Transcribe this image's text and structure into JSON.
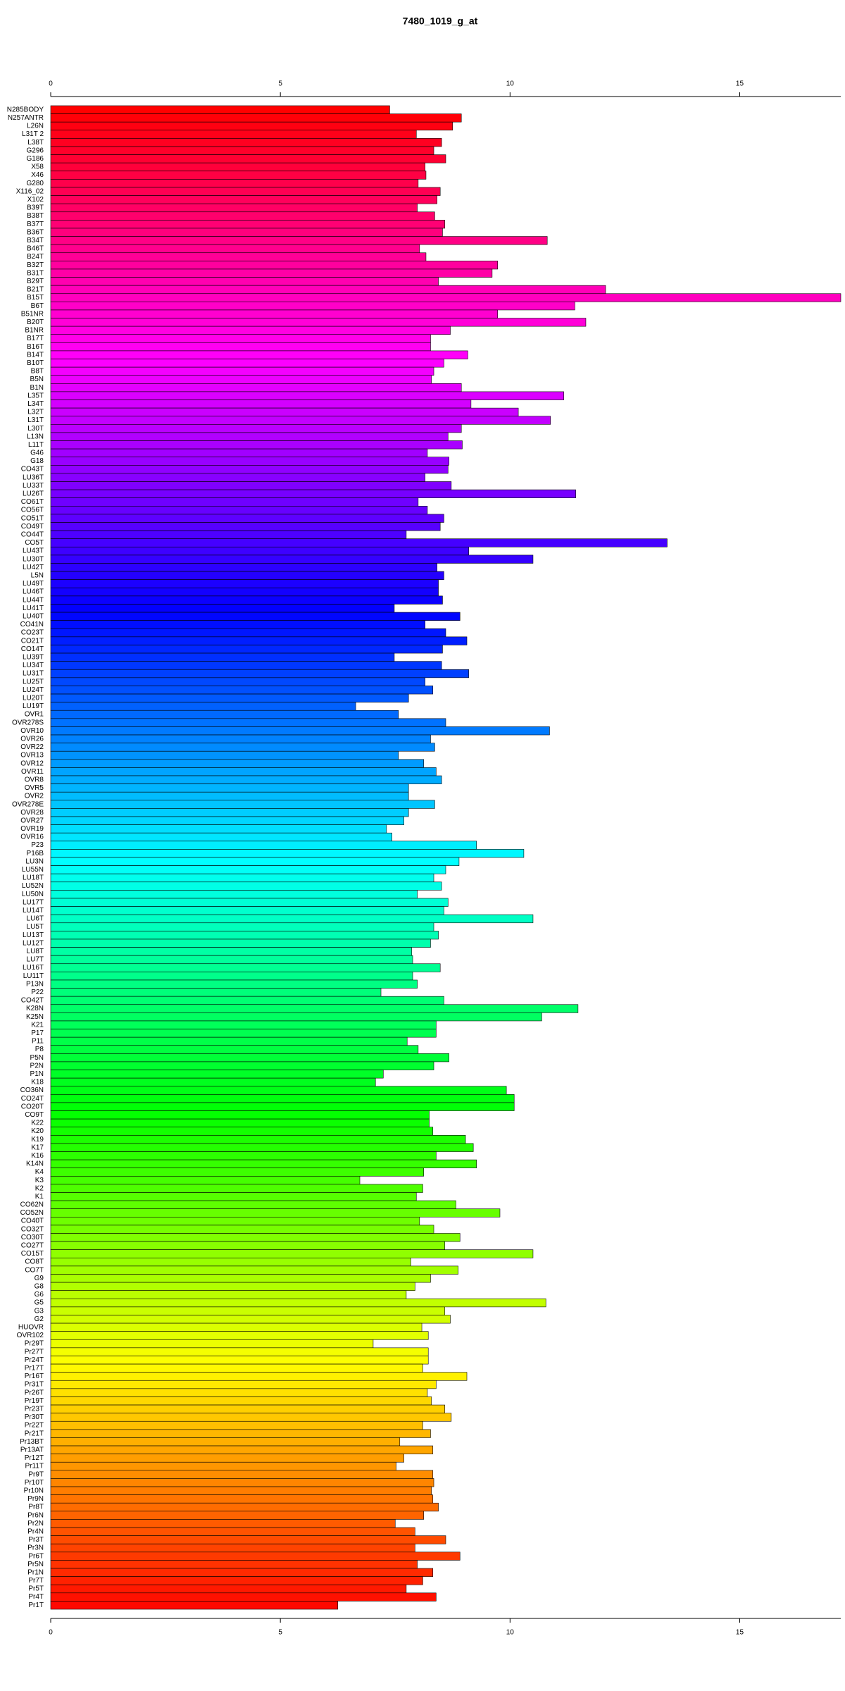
{
  "chart_data": {
    "type": "hbar",
    "title": "7480_1019_g_at",
    "categories": [
      "N285BODY",
      "N257ANTR",
      "L26N",
      "L31T 2",
      "L38T",
      "G296",
      "G186",
      "X58",
      "X46",
      "G280",
      "X116_02",
      "X102",
      "B39T",
      "B38T",
      "B37T",
      "B36T",
      "B34T",
      "B46T",
      "B24T",
      "B32T",
      "B31T",
      "B29T",
      "B21T",
      "B15T",
      "B6T",
      "B51NR",
      "B20T",
      "B1NR",
      "B17T",
      "B16T",
      "B14T",
      "B10T",
      "B8T",
      "B5N",
      "B1N",
      "L35T",
      "L34T",
      "L32T",
      "L31T",
      "L30T",
      "L13N",
      "L11T",
      "G46",
      "G18",
      "CO43T",
      "LU36T",
      "LU33T",
      "LU26T",
      "CO61T",
      "CO56T",
      "CO51T",
      "CO49T",
      "CO44T",
      "CO5T",
      "LU43T",
      "LU30T",
      "LU42T",
      "L5N",
      "LU49T",
      "LU46T",
      "LU44T",
      "LU41T",
      "LU40T",
      "CO41N",
      "CO23T",
      "CO21T",
      "CO14T",
      "LU39T",
      "LU34T",
      "LU31T",
      "LU25T",
      "LU24T",
      "LU20T",
      "LU19T",
      "OVR1",
      "OVR278S",
      "OVR10",
      "OVR26",
      "OVR22",
      "OVR13",
      "OVR12",
      "OVR11",
      "OVR8",
      "OVR5",
      "OVR2",
      "OVR278E",
      "OVR28",
      "OVR27",
      "OVR19",
      "OVR16",
      "P23",
      "P16B",
      "LU3N",
      "LU55N",
      "LU18T",
      "LU52N",
      "LU50N",
      "LU17T",
      "LU14T",
      "LU6T",
      "LU5T",
      "LU13T",
      "LU12T",
      "LU8T",
      "LU7T",
      "LU16T",
      "LU11T",
      "P13N",
      "P22",
      "CO42T",
      "K28N",
      "K25N",
      "K21",
      "P17",
      "P11",
      "P8",
      "P5N",
      "P2N",
      "P1N",
      "K18",
      "CO36N",
      "CO24T",
      "CO20T",
      "CO9T",
      "K22",
      "K20",
      "K19",
      "K17",
      "K16",
      "K14N",
      "K4",
      "K3",
      "K2",
      "K1",
      "CO62N",
      "CO52N",
      "CO40T",
      "CO32T",
      "CO30T",
      "CO27T",
      "CO15T",
      "CO8T",
      "CO7T",
      "G9",
      "G8",
      "G6",
      "G5",
      "G3",
      "G2",
      "HUOVR",
      "OVR102",
      "Pr29T",
      "Pr27T",
      "Pr24T",
      "Pr17T",
      "Pr16T",
      "Pr31T",
      "Pr26T",
      "Pr19T",
      "Pr23T",
      "Pr30T",
      "Pr22T",
      "Pr21T",
      "Pr13BT",
      "Pr13AT",
      "Pr12T",
      "Pr11T",
      "Pr9T",
      "Pr10T",
      "Pr10N",
      "Pr9N",
      "Pr8T",
      "Pr6N",
      "Pr2N",
      "Pr4N",
      "Pr3T",
      "Pr3N",
      "Pr6T",
      "Pr5N",
      "Pr1N",
      "Pr7T",
      "Pr5T",
      "Pr4T",
      "Pr1T"
    ],
    "values": [
      7.38,
      8.94,
      8.75,
      7.96,
      8.51,
      8.34,
      8.6,
      8.15,
      8.17,
      8.0,
      8.48,
      8.41,
      7.98,
      8.36,
      8.58,
      8.53,
      10.81,
      8.03,
      8.17,
      9.73,
      9.61,
      8.44,
      12.08,
      17.2,
      11.41,
      9.73,
      11.65,
      8.7,
      8.27,
      8.27,
      9.08,
      8.56,
      8.34,
      8.29,
      8.94,
      11.17,
      9.15,
      10.18,
      10.88,
      8.94,
      8.65,
      8.96,
      8.2,
      8.67,
      8.65,
      8.15,
      8.72,
      11.43,
      8.0,
      8.2,
      8.56,
      8.48,
      7.74,
      13.42,
      9.1,
      10.5,
      8.41,
      8.56,
      8.44,
      8.44,
      8.53,
      7.48,
      8.91,
      8.15,
      8.6,
      9.06,
      8.53,
      7.48,
      8.51,
      9.1,
      8.15,
      8.32,
      7.79,
      6.64,
      7.57,
      8.6,
      10.86,
      8.27,
      8.36,
      7.57,
      8.12,
      8.39,
      8.51,
      7.79,
      7.79,
      8.36,
      7.79,
      7.69,
      7.31,
      7.43,
      9.27,
      10.3,
      8.89,
      8.6,
      8.34,
      8.51,
      7.98,
      8.65,
      8.56,
      10.5,
      8.34,
      8.44,
      8.27,
      7.86,
      7.88,
      8.48,
      7.88,
      7.98,
      7.19,
      8.56,
      11.48,
      10.69,
      8.39,
      8.39,
      7.76,
      8.0,
      8.67,
      8.34,
      7.24,
      7.07,
      9.92,
      10.09,
      10.09,
      8.24,
      8.24,
      8.32,
      9.03,
      9.2,
      8.39,
      9.27,
      8.12,
      6.73,
      8.1,
      7.96,
      8.82,
      9.78,
      8.03,
      8.34,
      8.91,
      8.58,
      10.5,
      7.84,
      8.87,
      8.27,
      7.93,
      7.74,
      10.78,
      8.58,
      8.7,
      8.08,
      8.22,
      7.02,
      8.22,
      8.22,
      8.1,
      9.06,
      8.39,
      8.2,
      8.29,
      8.58,
      8.72,
      8.1,
      8.27,
      7.6,
      8.32,
      7.69,
      7.52,
      8.32,
      8.34,
      8.29,
      8.32,
      8.44,
      8.12,
      7.5,
      7.93,
      8.6,
      7.93,
      8.91,
      7.98,
      8.32,
      8.1,
      7.74,
      8.39,
      6.25
    ],
    "colors": "rainbow",
    "xlim": [
      0,
      17.2
    ],
    "xticks": [
      0,
      5,
      10,
      15
    ]
  }
}
